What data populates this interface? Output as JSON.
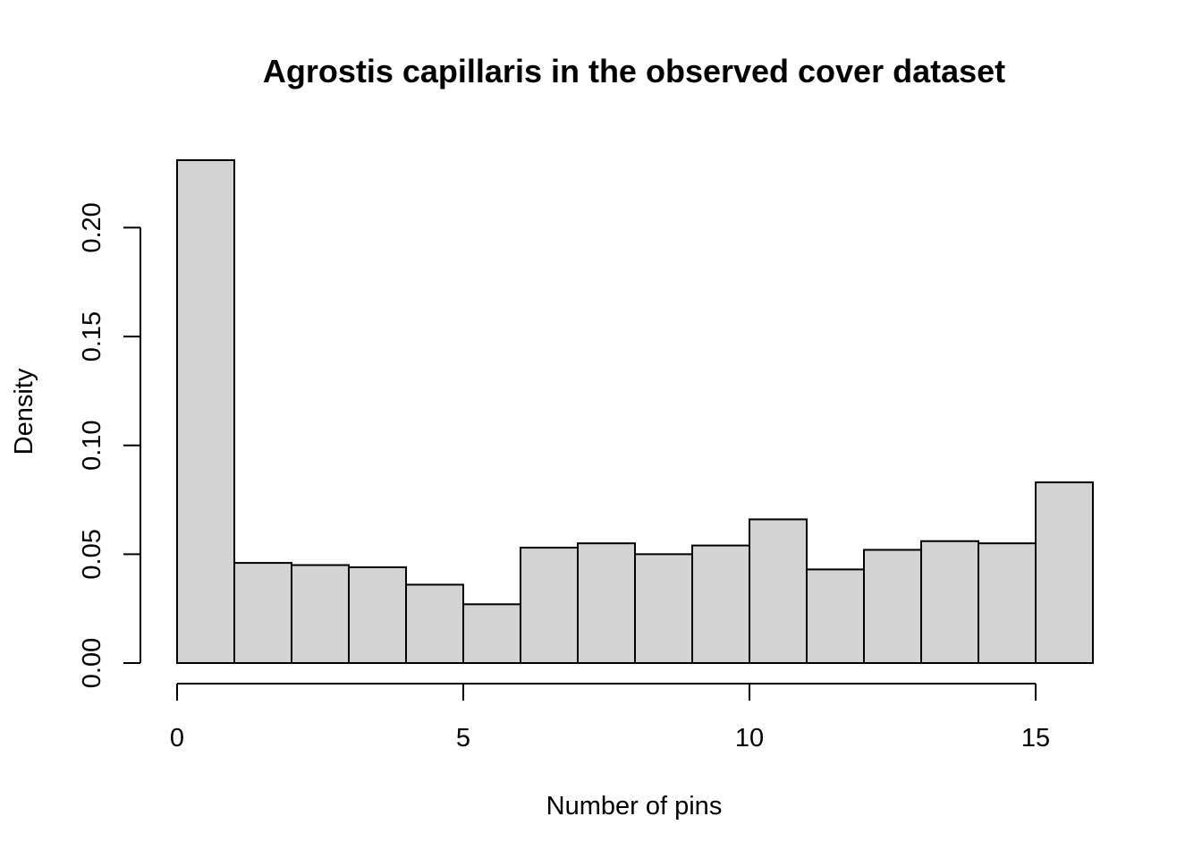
{
  "chart_data": {
    "type": "bar",
    "title": "Agrostis capillaris in the observed cover dataset",
    "xlabel": "Number of pins",
    "ylabel": "Density",
    "bins": [
      {
        "from": 0,
        "to": 1,
        "density": 0.231
      },
      {
        "from": 1,
        "to": 2,
        "density": 0.046
      },
      {
        "from": 2,
        "to": 3,
        "density": 0.045
      },
      {
        "from": 3,
        "to": 4,
        "density": 0.044
      },
      {
        "from": 4,
        "to": 5,
        "density": 0.036
      },
      {
        "from": 5,
        "to": 6,
        "density": 0.027
      },
      {
        "from": 6,
        "to": 7,
        "density": 0.053
      },
      {
        "from": 7,
        "to": 8,
        "density": 0.055
      },
      {
        "from": 8,
        "to": 9,
        "density": 0.05
      },
      {
        "from": 9,
        "to": 10,
        "density": 0.054
      },
      {
        "from": 10,
        "to": 11,
        "density": 0.066
      },
      {
        "from": 11,
        "to": 12,
        "density": 0.043
      },
      {
        "from": 12,
        "to": 13,
        "density": 0.052
      },
      {
        "from": 13,
        "to": 14,
        "density": 0.056
      },
      {
        "from": 14,
        "to": 15,
        "density": 0.055
      },
      {
        "from": 15,
        "to": 16,
        "density": 0.083
      }
    ],
    "x_ticks": [
      0,
      5,
      10,
      15
    ],
    "x_tick_labels": [
      "0",
      "5",
      "10",
      "15"
    ],
    "y_ticks": [
      0,
      0.05,
      0.1,
      0.15,
      0.2
    ],
    "y_tick_labels": [
      "0.00",
      "0.05",
      "0.10",
      "0.15",
      "0.20"
    ],
    "xlim": [
      0,
      16
    ],
    "ylim": [
      0,
      0.231
    ],
    "grid": false,
    "bar_color": "#d3d3d3",
    "edge_color": "#000000"
  }
}
